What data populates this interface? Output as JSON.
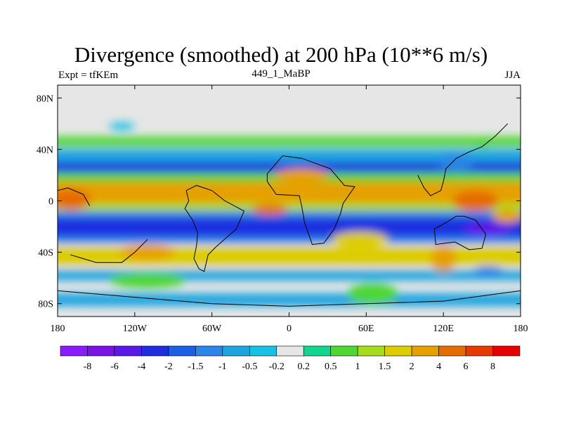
{
  "title": "Divergence (smoothed) at 200 hPa (10**6 m/s)",
  "subtitle_left": "Expt = tfKEm",
  "subtitle_center": "449_1_MaBP",
  "subtitle_right": "JJA",
  "chart_data": {
    "type": "contour_map",
    "field": "Divergence (smoothed) at 200 hPa",
    "units": "10**6 m/s",
    "season": "JJA",
    "x_range": [
      -180,
      180
    ],
    "y_range": [
      -90,
      90
    ],
    "x_ticks": [
      {
        "value": -180,
        "label": "180"
      },
      {
        "value": -120,
        "label": "120W"
      },
      {
        "value": -60,
        "label": "60W"
      },
      {
        "value": 0,
        "label": "0"
      },
      {
        "value": 60,
        "label": "60E"
      },
      {
        "value": 120,
        "label": "120E"
      },
      {
        "value": 180,
        "label": "180"
      }
    ],
    "y_ticks": [
      {
        "value": 80,
        "label": "80N"
      },
      {
        "value": 40,
        "label": "40N"
      },
      {
        "value": 0,
        "label": "0"
      },
      {
        "value": -40,
        "label": "40S"
      },
      {
        "value": -80,
        "label": "80S"
      }
    ],
    "colorbar": {
      "colors": [
        "#8c1aff",
        "#7a12e6",
        "#5b19e8",
        "#1f2fe0",
        "#1a5fe6",
        "#2a86e8",
        "#1ea4df",
        "#19c0e6",
        "#e6e6e6",
        "#12d68f",
        "#4fd630",
        "#a7dc1d",
        "#dccc00",
        "#e6a000",
        "#e66b00",
        "#e63a00",
        "#e60000"
      ],
      "labels": [
        "-8",
        "-6",
        "-4",
        "-2",
        "-1.5",
        "-1",
        "-0.5",
        "-0.2",
        "0.2",
        "0.5",
        "1",
        "1.5",
        "2",
        "4",
        "6",
        "8"
      ]
    },
    "bands": [
      {
        "lat_south": 42,
        "lat_north": 50,
        "value": 0.8
      },
      {
        "lat_south": 30,
        "lat_north": 40,
        "value": -0.8
      },
      {
        "lat_south": 22,
        "lat_north": 30,
        "value": -2.5
      },
      {
        "lat_south": 15,
        "lat_north": 22,
        "value": 0.6
      },
      {
        "lat_south": -2,
        "lat_north": 15,
        "value": 2.5
      },
      {
        "lat_south": -8,
        "lat_north": -2,
        "value": 1.2
      },
      {
        "lat_south": -13,
        "lat_north": -8,
        "value": -1.2
      },
      {
        "lat_south": -28,
        "lat_north": -13,
        "value": -3
      },
      {
        "lat_south": -33,
        "lat_north": -28,
        "value": -1.2
      },
      {
        "lat_south": -50,
        "lat_north": -36,
        "value": 1.8
      },
      {
        "lat_south": -62,
        "lat_north": -54,
        "value": -0.6
      },
      {
        "lat_south": -82,
        "lat_north": -72,
        "value": -0.6
      }
    ],
    "features": [
      {
        "lon": -170,
        "lat": 1,
        "rlon": 16,
        "rlat": 8,
        "value": 5
      },
      {
        "lon": 10,
        "lat": 20,
        "rlon": 22,
        "rlat": 5,
        "value": 2.5
      },
      {
        "lon": -15,
        "lat": -7,
        "rlon": 14,
        "rlat": 4,
        "value": 4
      },
      {
        "lon": 145,
        "lat": 0,
        "rlon": 18,
        "rlat": 8,
        "value": 4
      },
      {
        "lon": 155,
        "lat": -22,
        "rlon": 18,
        "rlat": 6,
        "value": -5
      },
      {
        "lon": 120,
        "lat": -45,
        "rlon": 10,
        "rlat": 10,
        "value": 2.5
      },
      {
        "lon": 55,
        "lat": -30,
        "rlon": 22,
        "rlat": 6,
        "value": 1.5
      },
      {
        "lon": -110,
        "lat": -40,
        "rlon": 22,
        "rlat": 6,
        "value": 2.5
      },
      {
        "lon": 170,
        "lat": -12,
        "rlon": 12,
        "rlat": 5,
        "value": 2
      },
      {
        "lon": 155,
        "lat": -55,
        "rlon": 12,
        "rlat": 4,
        "value": -1.5
      },
      {
        "lon": 130,
        "lat": 30,
        "rlon": 14,
        "rlat": 6,
        "value": -1.5
      },
      {
        "lon": 150,
        "lat": 45,
        "rlon": 10,
        "rlat": 4,
        "value": 0.8
      },
      {
        "lon": -130,
        "lat": 58,
        "rlon": 10,
        "rlat": 3,
        "value": -0.5
      },
      {
        "lon": 65,
        "lat": -72,
        "rlon": 20,
        "rlat": 8,
        "value": 0.6
      },
      {
        "lon": -110,
        "lat": -62,
        "rlon": 30,
        "rlat": 6,
        "value": 0.5
      }
    ]
  }
}
